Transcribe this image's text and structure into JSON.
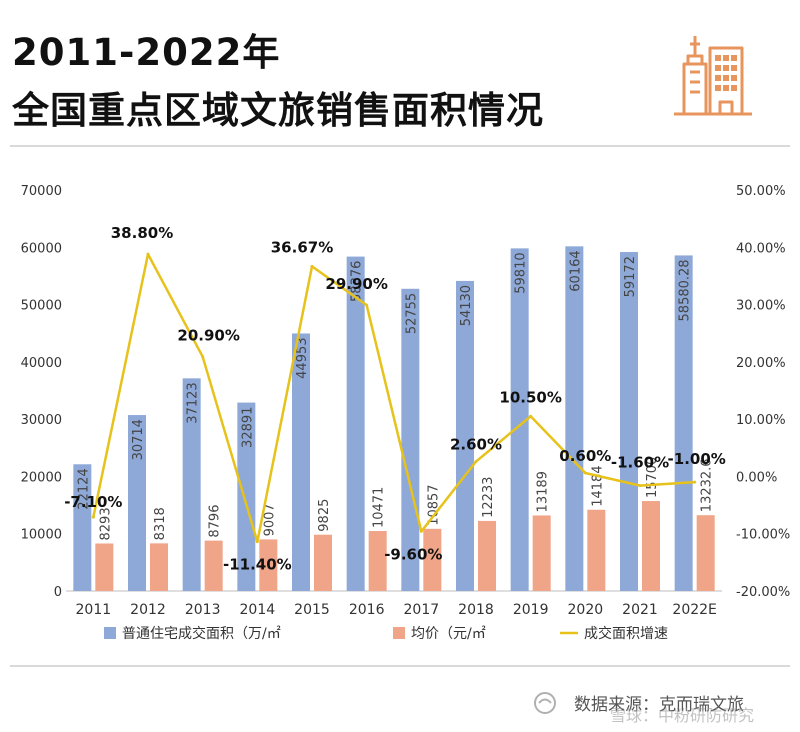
{
  "title_line1": "2011-2022年",
  "title_line2": "全国重点区域文旅销售面积情况",
  "source_text": "数据来源：克而瑞文旅",
  "watermark_text": "雪球：中粉研防研究",
  "colors": {
    "area": "#8ea9d8",
    "price": "#f0a488",
    "growth": "#e7c21a",
    "accent": "#e8955d"
  },
  "chart_data": {
    "type": "bar",
    "categories": [
      "2011",
      "2012",
      "2013",
      "2014",
      "2015",
      "2016",
      "2017",
      "2018",
      "2019",
      "2020",
      "2021",
      "2022E"
    ],
    "series": [
      {
        "name": "普通住宅成交面积（万/㎡",
        "type": "bar",
        "values": [
          22124,
          30714,
          37123,
          32891,
          44953,
          58376,
          52755,
          54130,
          59810,
          60164,
          59172,
          58580.28
        ],
        "labels": [
          "22124",
          "30714",
          "37123",
          "32891",
          "44953",
          "58376",
          "52755",
          "54130",
          "59810",
          "60164",
          "59172",
          "58580.28"
        ]
      },
      {
        "name": "均价（元/㎡",
        "type": "bar",
        "values": [
          8293,
          8318,
          8796,
          9007,
          9825,
          10471,
          10857,
          12233,
          13189,
          14184,
          15700,
          13232.6
        ],
        "labels": [
          "8293",
          "8318",
          "8796",
          "9007",
          "9825",
          "10471",
          "10857",
          "12233",
          "13189",
          "14184",
          "15700",
          "13232.6"
        ]
      },
      {
        "name": "成交面积增速",
        "type": "line",
        "axis": "right",
        "values": [
          -7.1,
          38.8,
          20.9,
          -11.4,
          36.67,
          29.9,
          -9.6,
          2.6,
          10.5,
          0.6,
          -1.6,
          -1.0
        ],
        "labels": [
          "-7.10%",
          "38.80%",
          "20.90%",
          "-11.40%",
          "36.67%",
          "29.90%",
          "-9.60%",
          "2.60%",
          "10.50%",
          "0.60%",
          "-1.60%",
          "-1.00%"
        ]
      }
    ],
    "left_axis": {
      "ylim": [
        0,
        70000
      ],
      "ticks": [
        "0",
        "10000",
        "20000",
        "30000",
        "40000",
        "50000",
        "60000",
        "70000"
      ]
    },
    "right_axis": {
      "ylim": [
        -20,
        50
      ],
      "ticks": [
        "-20.00%",
        "-10.00%",
        "0.00%",
        "10.00%",
        "20.00%",
        "30.00%",
        "40.00%",
        "50.00%"
      ]
    },
    "grid": false,
    "legend_position": "bottom"
  }
}
